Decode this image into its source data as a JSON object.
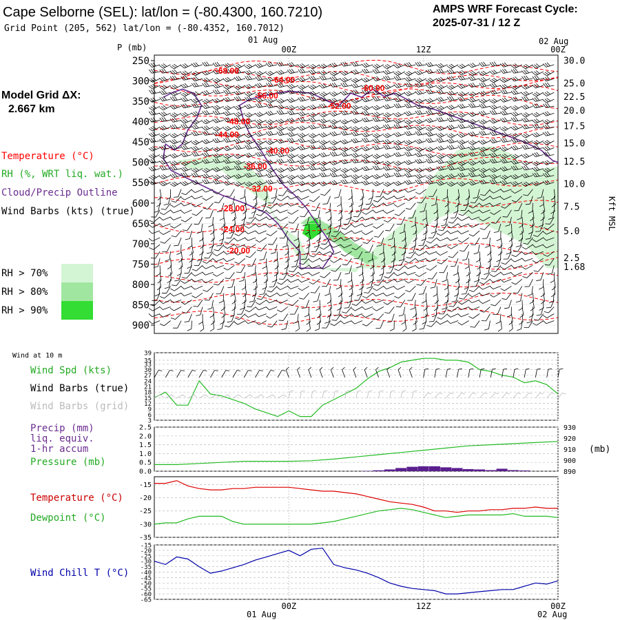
{
  "header": {
    "station": "Cape Selborne (SEL):  lat/lon = (-80.4300, 160.7210)",
    "grid_point": "Grid Point (205, 562) lat/lon = (-80.4352, 160.7012)",
    "cycle_title": "AMPS WRF Forecast Cycle:",
    "cycle_value": "2025-07-31 / 12  Z"
  },
  "grid_note": {
    "line1": "Model Grid ΔX:",
    "line2": "2.667 km"
  },
  "time_axis": {
    "date_labels": [
      "01 Aug",
      "02 Aug"
    ],
    "ticks": [
      {
        "label": "00Z",
        "hour": 12
      },
      {
        "label": "12Z",
        "hour": 24
      },
      {
        "label": "00Z",
        "hour": 36
      }
    ],
    "hour_range": [
      0,
      36
    ]
  },
  "legend_upper": {
    "temperature": "Temperature (°C)",
    "rh": "RH (%, WRT liq. wat.)",
    "cloud": "Cloud/Precip Outline",
    "wind": "Wind Barbs (kts) (true)"
  },
  "rh_legend": [
    {
      "label": "RH > 70%",
      "color": "#d4f5d4"
    },
    {
      "label": "RH > 80%",
      "color": "#a0e6a0"
    },
    {
      "label": "RH > 90%",
      "color": "#33dd33"
    }
  ],
  "colors": {
    "temperature_red": "#ff0000",
    "rh_green": "#22aa22",
    "cloud_purple": "#6a2c8f",
    "wind_chill_blue": "#0000aa",
    "grid_gray": "#999999"
  },
  "chart_data": [
    {
      "type": "heatmap",
      "panel": "time-height cross section",
      "ylabel_left": "P (mb)",
      "ylabel_right": "Kft MSL",
      "pressure_ticks": [
        250,
        300,
        350,
        400,
        450,
        500,
        550,
        600,
        650,
        700,
        750,
        800,
        850,
        900
      ],
      "ylim_mb": [
        900,
        250
      ],
      "height_ticks_kft": [
        {
          "label": "30.0",
          "mb": 249
        },
        {
          "label": "25.0",
          "mb": 305
        },
        {
          "label": "22.5",
          "mb": 338
        },
        {
          "label": "20.0",
          "mb": 372
        },
        {
          "label": "17.5",
          "mb": 410
        },
        {
          "label": "15.0",
          "mb": 452
        },
        {
          "label": "12.5",
          "mb": 497
        },
        {
          "label": "10.0",
          "mb": 552
        },
        {
          "label": "7.5",
          "mb": 608
        },
        {
          "label": "5.0",
          "mb": 668
        },
        {
          "label": "2.5",
          "mb": 734
        },
        {
          "label": "1.68",
          "mb": 756
        }
      ],
      "temperature_contour_labels": [
        {
          "value": "-68.00",
          "hour": 6.5,
          "mb": 275
        },
        {
          "value": "-64.00",
          "hour": 11.5,
          "mb": 297
        },
        {
          "value": "-60.00",
          "hour": 19.5,
          "mb": 318
        },
        {
          "value": "-56.00",
          "hour": 10.0,
          "mb": 336
        },
        {
          "value": "-52.00",
          "hour": 16.5,
          "mb": 362
        },
        {
          "value": "-48.00",
          "hour": 7.5,
          "mb": 400
        },
        {
          "value": "-44.00",
          "hour": 6.5,
          "mb": 432
        },
        {
          "value": "-40.00",
          "hour": 11.0,
          "mb": 472
        },
        {
          "value": "-36.00",
          "hour": 9.0,
          "mb": 510
        },
        {
          "value": "-32.00",
          "hour": 9.5,
          "mb": 565
        },
        {
          "value": "-28.00",
          "hour": 7.0,
          "mb": 613
        },
        {
          "value": "-24.00",
          "hour": 7.0,
          "mb": 665
        },
        {
          "value": "-20.00",
          "hour": 7.5,
          "mb": 717
        }
      ],
      "rh_regions": [
        {
          "level": 70,
          "hours_mb": [
            [
              2,
              495
            ],
            [
              6,
              483
            ],
            [
              8,
              500
            ],
            [
              10,
              550
            ],
            [
              10.5,
              620
            ],
            [
              11.5,
              660
            ],
            [
              13,
              690
            ],
            [
              14,
              760
            ],
            [
              18,
              770
            ],
            [
              20,
              700
            ],
            [
              23,
              630
            ],
            [
              25,
              530
            ],
            [
              27,
              470
            ],
            [
              30,
              460
            ],
            [
              32,
              480
            ],
            [
              33,
              520
            ],
            [
              36,
              510
            ],
            [
              36,
              760
            ],
            [
              35,
              760
            ],
            [
              33,
              700
            ],
            [
              30,
              660
            ],
            [
              27,
              620
            ],
            [
              25,
              640
            ],
            [
              23,
              690
            ],
            [
              22,
              740
            ],
            [
              20,
              760
            ],
            [
              14,
              760
            ],
            [
              13,
              740
            ],
            [
              12,
              700
            ],
            [
              11,
              650
            ],
            [
              10,
              600
            ],
            [
              8,
              560
            ],
            [
              6,
              520
            ],
            [
              3,
              515
            ]
          ]
        },
        {
          "level": 80,
          "hours_mb": [
            [
              13,
              650
            ],
            [
              15,
              670
            ],
            [
              17,
              720
            ],
            [
              19,
              750
            ],
            [
              20,
              735
            ],
            [
              18,
              700
            ],
            [
              16,
              660
            ],
            [
              14,
              630
            ]
          ]
        },
        {
          "level": 90,
          "hours_mb": [
            [
              13.5,
              650
            ],
            [
              14.5,
              640
            ],
            [
              15,
              670
            ],
            [
              14,
              690
            ],
            [
              13.2,
              675
            ]
          ]
        }
      ]
    },
    {
      "type": "line",
      "panel": "wind at 10 m",
      "title": "Wind at 10 m",
      "labels": [
        "Wind Spd (kts)",
        "Wind Barbs (true)",
        "Wind Barbs (grid)"
      ],
      "yticks": [
        39,
        35,
        33,
        30,
        27,
        24,
        21,
        18,
        15,
        12,
        9,
        6,
        3
      ],
      "ylim": [
        3,
        39
      ],
      "series": [
        {
          "name": "Wind Spd (kts)",
          "x": [
            0,
            1,
            2,
            3,
            4,
            5,
            6,
            7,
            8,
            9,
            10,
            11,
            12,
            13,
            14,
            15,
            16,
            17,
            18,
            19,
            20,
            21,
            22,
            23,
            24,
            25,
            26,
            27,
            28,
            29,
            30,
            31,
            32,
            33,
            34,
            35,
            36
          ],
          "y": [
            15,
            18,
            11,
            11,
            24,
            17,
            16,
            14,
            12,
            9,
            7,
            5,
            8,
            5,
            5,
            11,
            14,
            17,
            20,
            25,
            29,
            31,
            34,
            35,
            36,
            36,
            35,
            35,
            34,
            30,
            29,
            27,
            26,
            23,
            24,
            22,
            17
          ]
        }
      ]
    },
    {
      "type": "line",
      "panel": "precip and pressure",
      "labels": [
        "Precip (mm)",
        "liq. equiv.",
        "1-hr accum",
        "Pressure (mb)"
      ],
      "yticks_left": [
        2.5,
        2.0,
        1.5,
        1.0,
        0.5,
        0.0
      ],
      "ylim_left": [
        0,
        2.5
      ],
      "yticks_right": [
        930,
        920,
        910,
        900,
        890
      ],
      "ylim_right": [
        890,
        930
      ],
      "unit_right": "(mb)",
      "series": [
        {
          "name": "Pressure (mb)",
          "x": [
            0,
            2,
            4,
            6,
            8,
            10,
            12,
            14,
            16,
            18,
            20,
            22,
            24,
            26,
            28,
            30,
            32,
            34,
            36
          ],
          "y": [
            896,
            896,
            897,
            898,
            899,
            899,
            899,
            899.5,
            901,
            903,
            905,
            907,
            909,
            911,
            913,
            914,
            915,
            916,
            917
          ]
        },
        {
          "name": "Precip (mm)",
          "type": "bar",
          "x": [
            19,
            20,
            21,
            22,
            23,
            24,
            25,
            26,
            27,
            28,
            29,
            30,
            31,
            32,
            33
          ],
          "y": [
            0.02,
            0.05,
            0.1,
            0.18,
            0.25,
            0.28,
            0.28,
            0.22,
            0.18,
            0.12,
            0.1,
            0.06,
            0.14,
            0.06,
            0.04
          ]
        }
      ]
    },
    {
      "type": "line",
      "panel": "temperature and dewpoint",
      "labels": [
        "Temperature (°C)",
        "Dewpoint (°C)"
      ],
      "yticks": [
        -15,
        -20,
        -25,
        -30,
        -35
      ],
      "ylim": [
        -35,
        -12
      ],
      "series": [
        {
          "name": "Temperature (°C)",
          "x": [
            0,
            1,
            2,
            3,
            4,
            5,
            6,
            7,
            8,
            9,
            10,
            11,
            12,
            13,
            14,
            15,
            16,
            17,
            18,
            19,
            20,
            21,
            22,
            23,
            24,
            25,
            26,
            27,
            28,
            29,
            30,
            31,
            32,
            33,
            34,
            35,
            36
          ],
          "y": [
            -14.5,
            -14.5,
            -13.5,
            -15.5,
            -16.5,
            -17,
            -17,
            -16.5,
            -16.5,
            -16,
            -16,
            -16,
            -16,
            -16.5,
            -17,
            -17.5,
            -17.5,
            -18,
            -18.5,
            -19.5,
            -20.5,
            -21.5,
            -22,
            -22.5,
            -23.5,
            -25,
            -25,
            -25.5,
            -25,
            -25,
            -24.5,
            -24.5,
            -24,
            -24,
            -23.5,
            -24,
            -24
          ]
        },
        {
          "name": "Dewpoint (°C)",
          "x": [
            0,
            1,
            2,
            3,
            4,
            5,
            6,
            7,
            8,
            9,
            10,
            11,
            12,
            13,
            14,
            15,
            16,
            17,
            18,
            19,
            20,
            21,
            22,
            23,
            24,
            25,
            26,
            27,
            28,
            29,
            30,
            31,
            32,
            33,
            34,
            35,
            36
          ],
          "y": [
            -30,
            -29.5,
            -29.5,
            -28,
            -27,
            -27,
            -27,
            -29,
            -30,
            -30,
            -30,
            -30,
            -30,
            -30,
            -30,
            -29.5,
            -29,
            -28,
            -27,
            -26,
            -25,
            -24.5,
            -24,
            -24.5,
            -25.5,
            -26.5,
            -27.5,
            -27,
            -26.5,
            -26.5,
            -26.5,
            -26.5,
            -26,
            -27,
            -27,
            -27,
            -27.5
          ]
        }
      ]
    },
    {
      "type": "line",
      "panel": "wind chill",
      "labels": [
        "Wind Chill T (°C)"
      ],
      "yticks": [
        -15,
        -20,
        -25,
        -30,
        -35,
        -40,
        -45,
        -50,
        -55,
        -60,
        -65
      ],
      "ylim": [
        -65,
        -15
      ],
      "series": [
        {
          "name": "Wind Chill T (°C)",
          "x": [
            0,
            1,
            2,
            3,
            4,
            5,
            6,
            7,
            8,
            9,
            10,
            11,
            12,
            13,
            14,
            15,
            16,
            17,
            18,
            19,
            20,
            21,
            22,
            23,
            24,
            25,
            26,
            27,
            28,
            29,
            30,
            31,
            32,
            33,
            34,
            35,
            36
          ],
          "y": [
            -30,
            -33,
            -26,
            -28,
            -35,
            -41,
            -39,
            -36,
            -33,
            -29,
            -26,
            -23,
            -20,
            -25,
            -19,
            -18,
            -33,
            -36,
            -38,
            -41,
            -45,
            -50,
            -53,
            -55,
            -56,
            -57,
            -60,
            -60,
            -59,
            -58,
            -57,
            -56,
            -56,
            -53,
            -50,
            -51,
            -48
          ]
        }
      ]
    }
  ]
}
